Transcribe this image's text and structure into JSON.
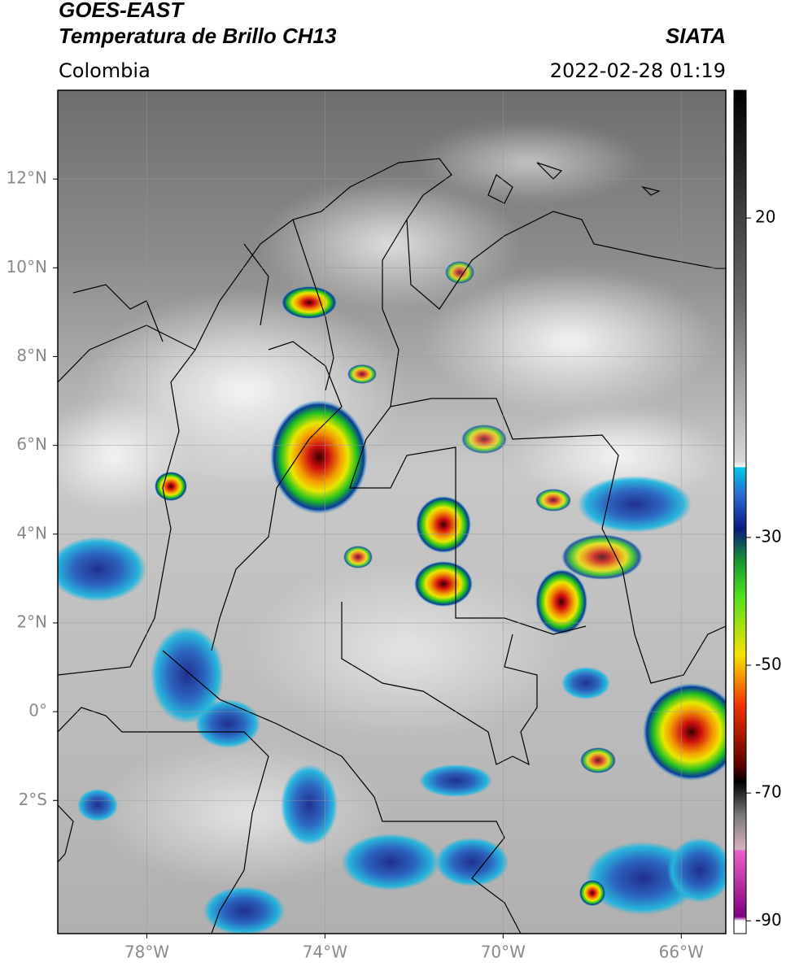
{
  "header": {
    "satellite": "GOES-EAST",
    "product": "Temperatura de Brillo CH13",
    "region": "Colombia",
    "source": "SIATA",
    "datetime": "2022-02-28 01:19"
  },
  "map": {
    "xlim": [
      -80,
      -65
    ],
    "ylim": [
      -5,
      14
    ],
    "xticks": [
      {
        "value": -78,
        "label": "78°W"
      },
      {
        "value": -74,
        "label": "74°W"
      },
      {
        "value": -70,
        "label": "70°W"
      },
      {
        "value": -66,
        "label": "66°W"
      }
    ],
    "yticks": [
      {
        "value": 12,
        "label": "12°N"
      },
      {
        "value": 10,
        "label": "10°N"
      },
      {
        "value": 8,
        "label": "8°N"
      },
      {
        "value": 6,
        "label": "6°N"
      },
      {
        "value": 4,
        "label": "4°N"
      },
      {
        "value": 2,
        "label": "2°N"
      },
      {
        "value": 0,
        "label": "0°"
      },
      {
        "value": -2,
        "label": "2°S"
      }
    ],
    "grid": true,
    "colorbar": {
      "lim": [
        -92,
        40
      ],
      "ticks": [
        20,
        -30,
        -50,
        -70,
        -90
      ]
    }
  }
}
